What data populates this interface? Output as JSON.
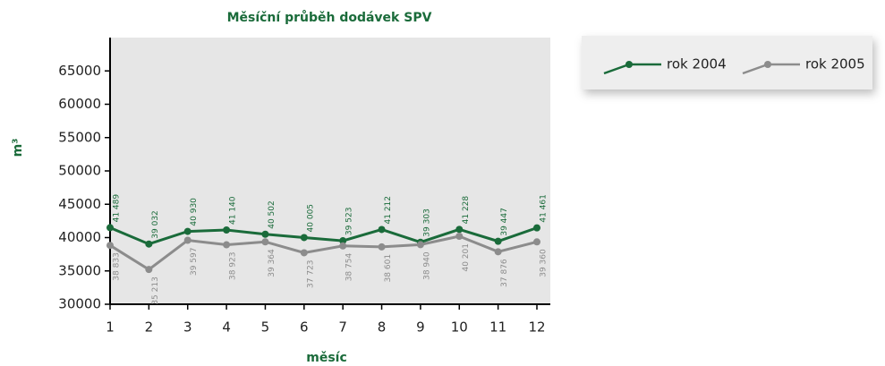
{
  "chart_data": {
    "type": "line",
    "title": "Měsíční průběh dodávek SPV",
    "x_label": "měsíc",
    "y_label": "m³",
    "x": [
      1,
      2,
      3,
      4,
      5,
      6,
      7,
      8,
      9,
      10,
      11,
      12
    ],
    "xlim": [
      1,
      12
    ],
    "xticks": [
      1,
      2,
      3,
      4,
      5,
      6,
      7,
      8,
      9,
      10,
      11,
      12
    ],
    "ylim": [
      30000,
      70000
    ],
    "yticks": [
      30000,
      35000,
      40000,
      45000,
      50000,
      55000,
      60000,
      65000
    ],
    "legend": "top-right",
    "series": [
      {
        "name": "rok 2004",
        "color": "#1a6b3a",
        "values": [
          41489,
          39032,
          40930,
          41140,
          40502,
          40005,
          39523,
          41212,
          39303,
          41228,
          39447,
          41461
        ],
        "value_labels": [
          "41 489",
          "39 032",
          "40 930",
          "41 140",
          "40 502",
          "40 005",
          "39 523",
          "41 212",
          "39 303",
          "41 228",
          "39 447",
          "41 461"
        ]
      },
      {
        "name": "rok 2005",
        "color": "#8c8c8c",
        "values": [
          38833,
          35213,
          39597,
          38923,
          39364,
          37723,
          38754,
          38601,
          38940,
          40201,
          37876,
          39360
        ],
        "value_labels": [
          "38 833",
          "35 213",
          "39 597",
          "38 923",
          "39 364",
          "37 723",
          "38 754",
          "38 601",
          "38 940",
          "40 201",
          "37 876",
          "39 360"
        ]
      }
    ]
  }
}
